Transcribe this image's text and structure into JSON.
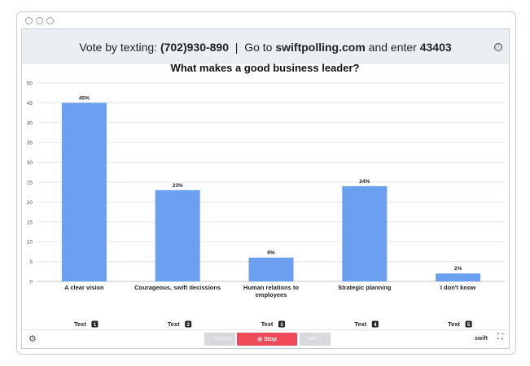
{
  "header": {
    "vote_prefix": "Vote by texting: ",
    "phone": "(702)930-890",
    "separator": "  |  ",
    "goto_prefix": "Go to ",
    "site": "swiftpolling.com",
    "enter_text": " and enter ",
    "code": "43403",
    "info_icon": "ⓘ"
  },
  "chart_data": {
    "type": "bar",
    "title": "What makes a good business leader?",
    "categories": [
      "A clear vision",
      "Courageous, swift decissions",
      "Human relations to employees",
      "Strategic planning",
      "I don't know"
    ],
    "values": [
      45,
      23,
      6,
      24,
      2
    ],
    "value_labels": [
      "45%",
      "23%",
      "6%",
      "24%",
      "2%"
    ],
    "ylim": [
      0,
      50
    ],
    "yticks": [
      0,
      5,
      10,
      15,
      20,
      25,
      30,
      35,
      40,
      45,
      50
    ],
    "grid": true,
    "bar_color": "#6b9ff0",
    "text_keys": [
      {
        "text": "Text",
        "number": "1"
      },
      {
        "text": "Text",
        "number": "2"
      },
      {
        "text": "Text",
        "number": "3"
      },
      {
        "text": "Text",
        "number": "4"
      },
      {
        "text": "Text",
        "number": "5"
      }
    ]
  },
  "footer": {
    "settings_icon": "⚙",
    "previous_label": "← Previous",
    "stop_label": "◎ Stop",
    "next_label": "Next →",
    "brand": "swift",
    "expand_icon": "⛶"
  },
  "colors": {
    "accent_stop": "#ef4b57",
    "header_bg": "#eceff2"
  }
}
